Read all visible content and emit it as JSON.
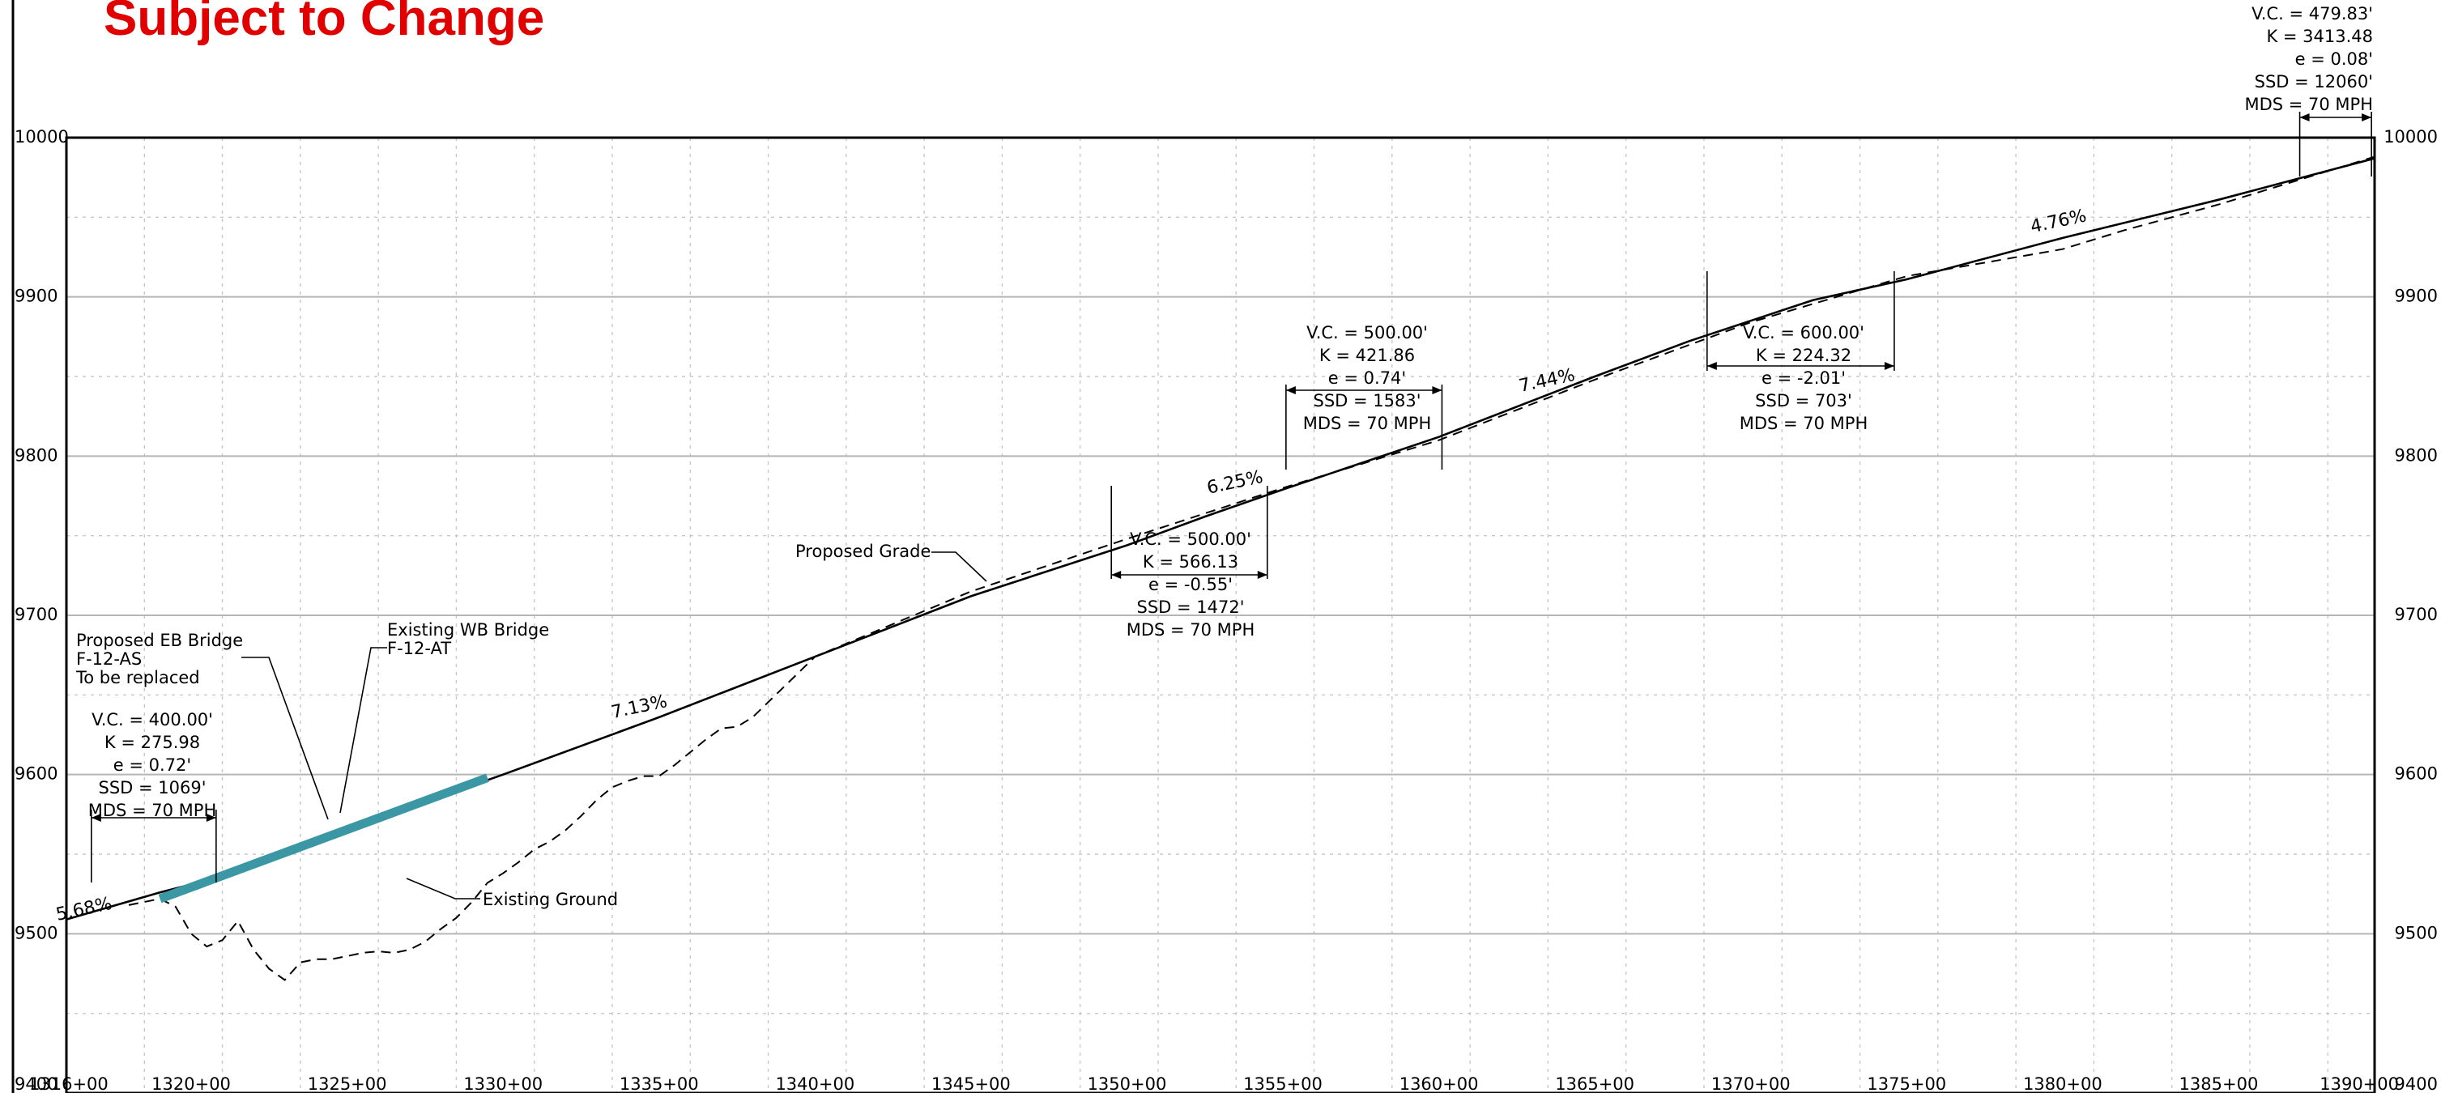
{
  "stamp": {
    "text": "Subject to Change",
    "color": "#e00000"
  },
  "axes": {
    "x": {
      "min": 131600,
      "max": 139000,
      "major_step": 500,
      "minor_step": 250,
      "tick_labels": [
        "1316+00",
        "1320+00",
        "1325+00",
        "1330+00",
        "1335+00",
        "1340+00",
        "1345+00",
        "1350+00",
        "1355+00",
        "1360+00",
        "1365+00",
        "1370+00",
        "1375+00",
        "1380+00",
        "1385+00",
        "1390+00"
      ],
      "tick_values": [
        131600,
        132000,
        132500,
        133000,
        133500,
        134000,
        134500,
        135000,
        135500,
        136000,
        136500,
        137000,
        137500,
        138000,
        138500,
        139000
      ]
    },
    "y": {
      "min": 9400,
      "max": 10000,
      "major_step": 100,
      "minor_step": 50,
      "tick_labels_left": [
        "10000",
        "9900",
        "9800",
        "9700",
        "9600",
        "9500",
        "9400"
      ],
      "tick_labels_right": [
        "10000",
        "9900",
        "9800",
        "9700",
        "9600",
        "9500",
        "9400"
      ],
      "tick_values": [
        10000,
        9900,
        9800,
        9700,
        9600,
        9500,
        9400
      ]
    },
    "grid": true
  },
  "series": {
    "proposed_grade": [
      [
        131600,
        9509
      ],
      [
        131900,
        9526
      ],
      [
        132000,
        9531
      ],
      [
        133000,
        9600
      ],
      [
        133500,
        9636
      ],
      [
        134000,
        9674
      ],
      [
        134500,
        9712
      ],
      [
        135000,
        9744
      ],
      [
        135250,
        9762
      ],
      [
        135500,
        9779
      ],
      [
        136000,
        9812
      ],
      [
        136500,
        9850
      ],
      [
        136800,
        9872
      ],
      [
        137200,
        9898
      ],
      [
        137500,
        9911
      ],
      [
        138000,
        9937
      ],
      [
        138500,
        9961
      ],
      [
        139000,
        9987
      ]
    ],
    "existing_ground": [
      [
        131800,
        9518
      ],
      [
        131900,
        9522
      ],
      [
        131950,
        9517
      ],
      [
        132000,
        9500
      ],
      [
        132050,
        9492
      ],
      [
        132100,
        9496
      ],
      [
        132150,
        9508
      ],
      [
        132200,
        9490
      ],
      [
        132250,
        9478
      ],
      [
        132300,
        9471
      ],
      [
        132350,
        9482
      ],
      [
        132400,
        9484
      ],
      [
        132450,
        9484
      ],
      [
        132500,
        9486
      ],
      [
        132550,
        9488
      ],
      [
        132600,
        9489
      ],
      [
        132650,
        9488
      ],
      [
        132700,
        9490
      ],
      [
        132750,
        9495
      ],
      [
        132800,
        9503
      ],
      [
        132850,
        9510
      ],
      [
        132900,
        9520
      ],
      [
        132950,
        9532
      ],
      [
        133000,
        9538
      ],
      [
        133050,
        9545
      ],
      [
        133100,
        9553
      ],
      [
        133150,
        9558
      ],
      [
        133200,
        9565
      ],
      [
        133250,
        9574
      ],
      [
        133300,
        9584
      ],
      [
        133350,
        9592
      ],
      [
        133400,
        9596
      ],
      [
        133450,
        9599
      ],
      [
        133500,
        9599
      ],
      [
        133550,
        9606
      ],
      [
        133600,
        9614
      ],
      [
        133650,
        9622
      ],
      [
        133700,
        9629
      ],
      [
        133750,
        9630
      ],
      [
        133800,
        9636
      ],
      [
        134000,
        9674
      ],
      [
        134500,
        9715
      ],
      [
        135000,
        9748
      ],
      [
        135500,
        9780
      ],
      [
        136000,
        9810
      ],
      [
        136500,
        9848
      ],
      [
        137000,
        9884
      ],
      [
        137500,
        9913
      ],
      [
        138000,
        9930
      ],
      [
        138200,
        9942
      ],
      [
        138500,
        9958
      ],
      [
        139000,
        9988
      ]
    ],
    "bridge_eb": [
      [
        131900,
        9522
      ],
      [
        132950,
        9598
      ]
    ],
    "bridge_color": "#3a97a3"
  },
  "grade_labels": [
    {
      "text": "5.68%",
      "x": 131660,
      "y": 9512
    },
    {
      "text": "7.13%",
      "x": 133440,
      "y": 9639
    },
    {
      "text": "6.25%",
      "x": 135350,
      "y": 9780
    },
    {
      "text": "7.44%",
      "x": 136350,
      "y": 9844
    },
    {
      "text": "4.76%",
      "x": 137990,
      "y": 9944
    }
  ],
  "vertical_curves": [
    {
      "bvc": 131680,
      "evc": 132080,
      "lines": [
        "V.C. = 400.00'",
        "K = 275.98",
        "e = 0.72'",
        "SSD = 1069'",
        "MDS = 70 MPH"
      ]
    },
    {
      "bvc": 134950,
      "evc": 135450,
      "lines": [
        "V.C. = 500.00'",
        "K = 566.13",
        "e = -0.55'",
        "SSD = 1472'",
        "MDS = 70 MPH"
      ]
    },
    {
      "bvc": 135510,
      "evc": 136010,
      "lines": [
        "V.C. = 500.00'",
        "K = 421.86",
        "e = 0.74'",
        "SSD = 1583'",
        "MDS = 70 MPH"
      ]
    },
    {
      "bvc": 136860,
      "evc": 137460,
      "lines": [
        "V.C. = 600.00'",
        "K = 224.32",
        "e = -2.01'",
        "SSD = 703'",
        "MDS = 70 MPH"
      ]
    },
    {
      "bvc": 138760,
      "evc": 138990,
      "lines": [
        "V.C. = 479.83'",
        "K = 3413.48",
        "e = 0.08'",
        "SSD = 12060'",
        "MDS = 70 MPH"
      ]
    }
  ],
  "annotations": [
    {
      "lines": [
        "Proposed EB Bridge",
        "F-12-AS",
        "To be replaced"
      ]
    },
    {
      "lines": [
        "Existing WB Bridge",
        "F-12-AT"
      ]
    },
    {
      "lines": [
        "Proposed Grade"
      ]
    },
    {
      "lines": [
        "Existing Ground"
      ]
    }
  ]
}
